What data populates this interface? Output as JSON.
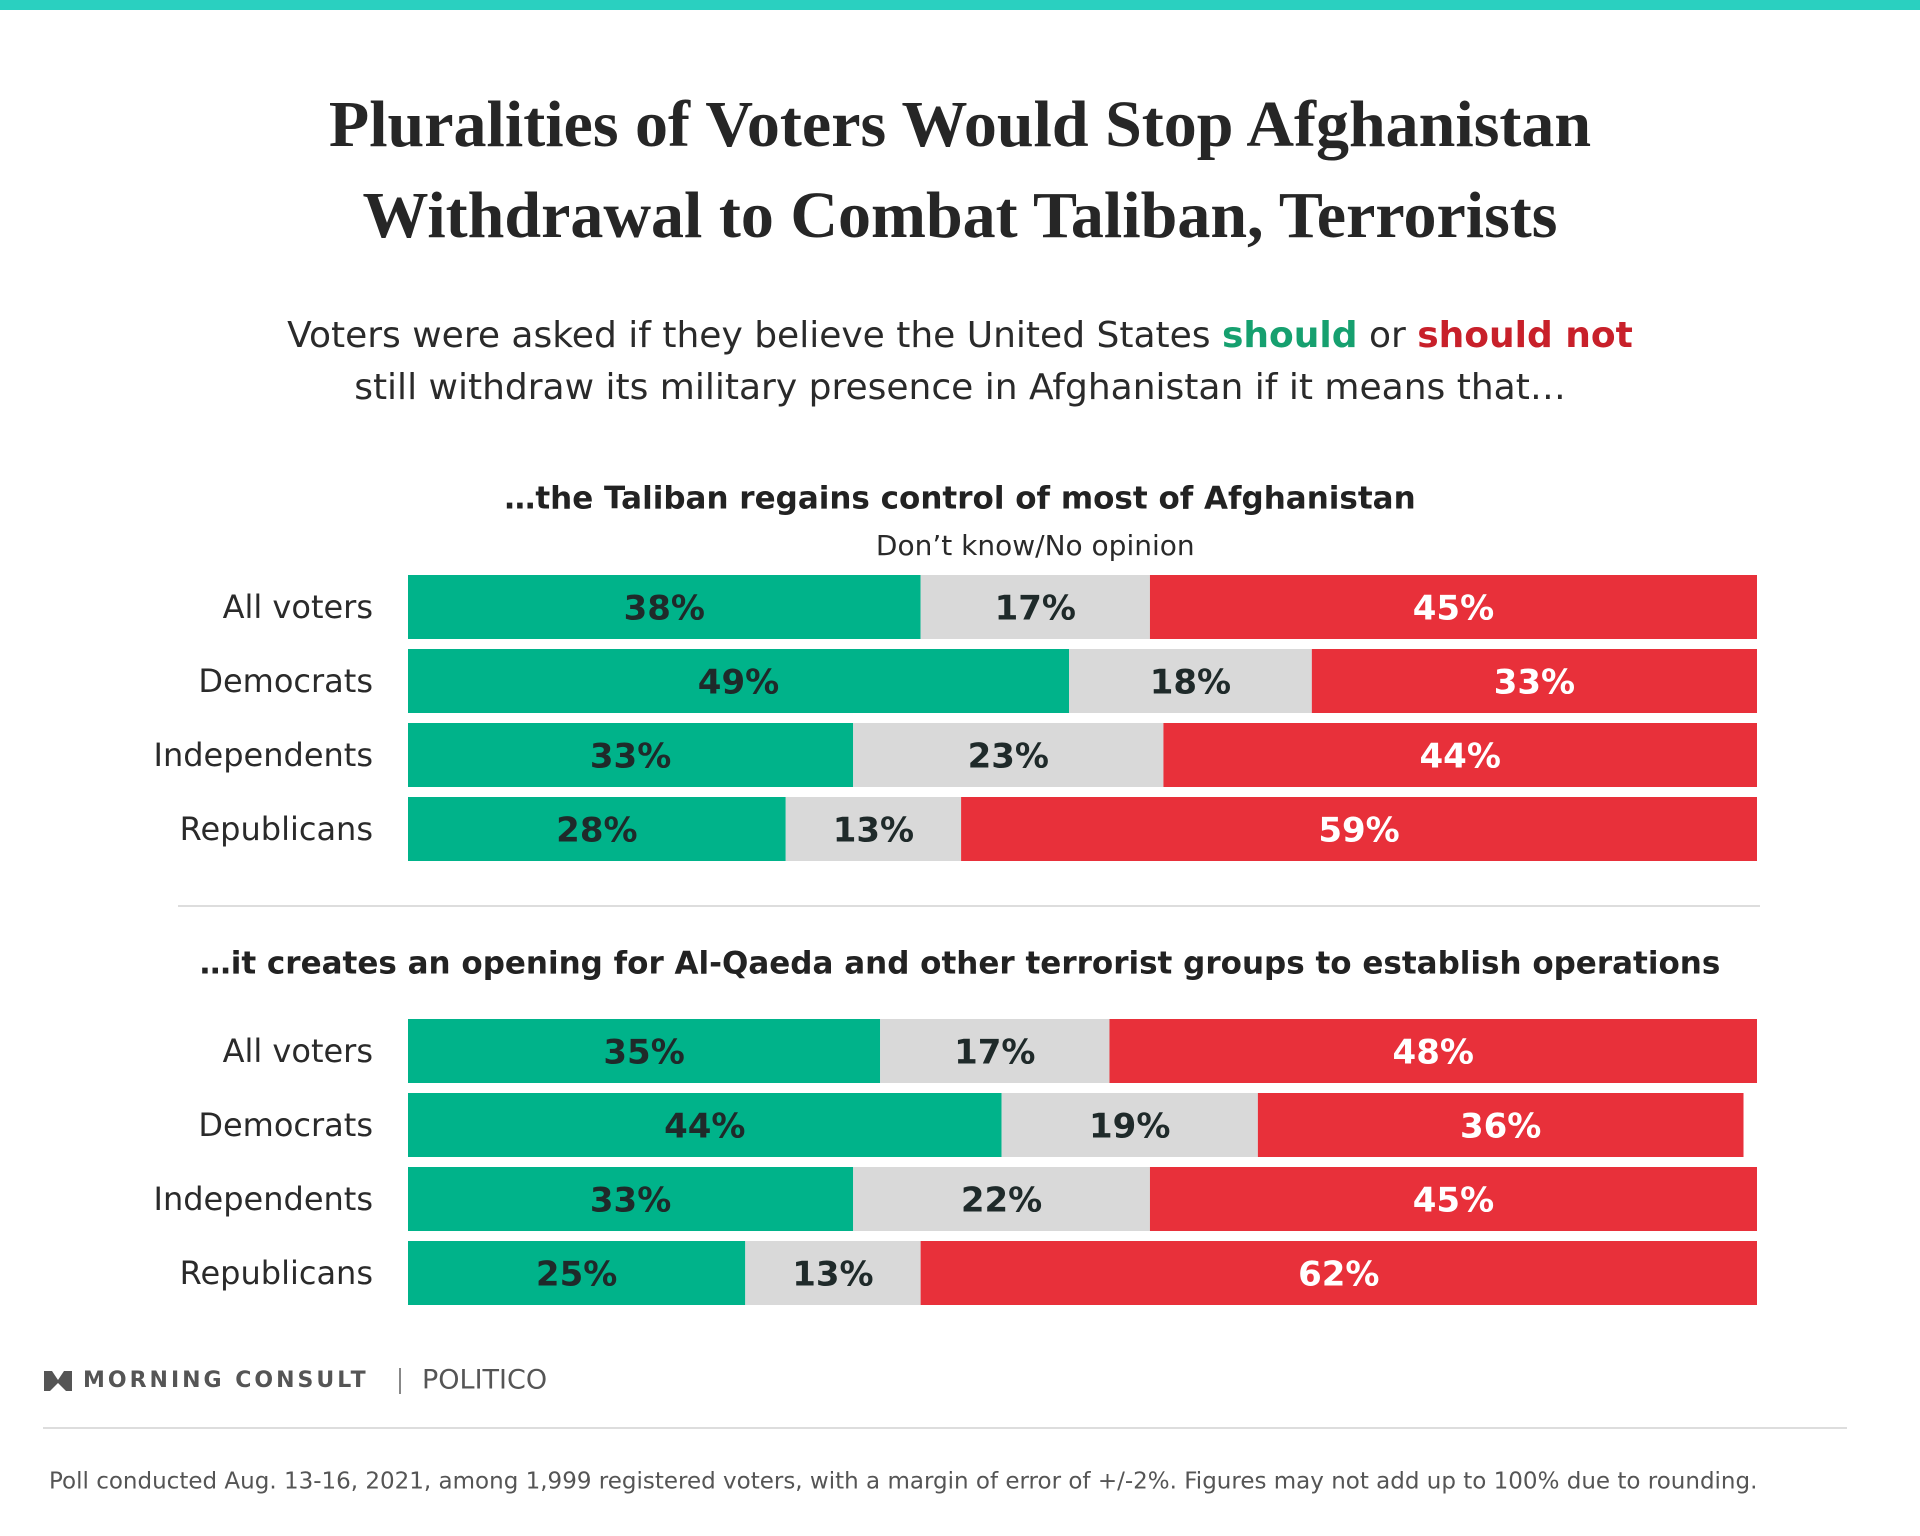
{
  "header": {
    "title_lines": [
      "Pluralities of Voters Would Stop Afghanistan",
      "Withdrawal to Combat Taliban, Terrorists"
    ],
    "subtitle": {
      "start": "Voters were asked if they believe the United States ",
      "middle": " or ",
      "second_line": "still withdraw its military presence in Afghanistan if it means that…"
    }
  },
  "chart_data": [
    {
      "type": "bar",
      "orientation": "horizontal",
      "stacked": true,
      "title": "…the Taliban regains control of most of Afghanistan",
      "categories": [
        "All voters",
        "Democrats",
        "Independents",
        "Republicans"
      ],
      "xlim": [
        0,
        100
      ],
      "series": [
        {
          "name": "should",
          "color": "#00b38a",
          "values": [
            38,
            49,
            33,
            28
          ],
          "value_labels": [
            "38%",
            "49%",
            "33%",
            "28%"
          ]
        },
        {
          "name": "Don’t know/No opinion",
          "color": "#d9d9d9",
          "values": [
            17,
            18,
            23,
            13
          ],
          "value_labels": [
            "17%",
            "18%",
            "23%",
            "13%"
          ]
        },
        {
          "name": "should not",
          "color": "#e8303a",
          "values": [
            45,
            33,
            44,
            59
          ],
          "value_labels": [
            "45%",
            "33%",
            "44%",
            "59%"
          ]
        }
      ]
    },
    {
      "type": "bar",
      "orientation": "horizontal",
      "stacked": true,
      "title": "…it creates an opening for Al-Qaeda and other terrorist groups to establish operations",
      "categories": [
        "All voters",
        "Democrats",
        "Independents",
        "Republicans"
      ],
      "xlim": [
        0,
        100
      ],
      "series": [
        {
          "color": "#00b38a",
          "values": [
            35,
            44,
            33,
            25
          ],
          "value_labels": [
            "35%",
            "44%",
            "33%",
            "25%"
          ]
        },
        {
          "color": "#d9d9d9",
          "values": [
            17,
            19,
            22,
            13
          ],
          "value_labels": [
            "17%",
            "19%",
            "22%",
            "13%"
          ]
        },
        {
          "color": "#e8303a",
          "values": [
            48,
            36,
            45,
            62
          ],
          "value_labels": [
            "48%",
            "36%",
            "45%",
            "62%"
          ]
        }
      ]
    }
  ],
  "footer": {
    "brand": "MORNING CONSULT",
    "partner": "POLITICO",
    "note": "Poll conducted Aug. 13-16, 2021, among 1,999 registered voters, with a margin of error of +/-2%. Figures may not add up to 100% due to rounding."
  }
}
